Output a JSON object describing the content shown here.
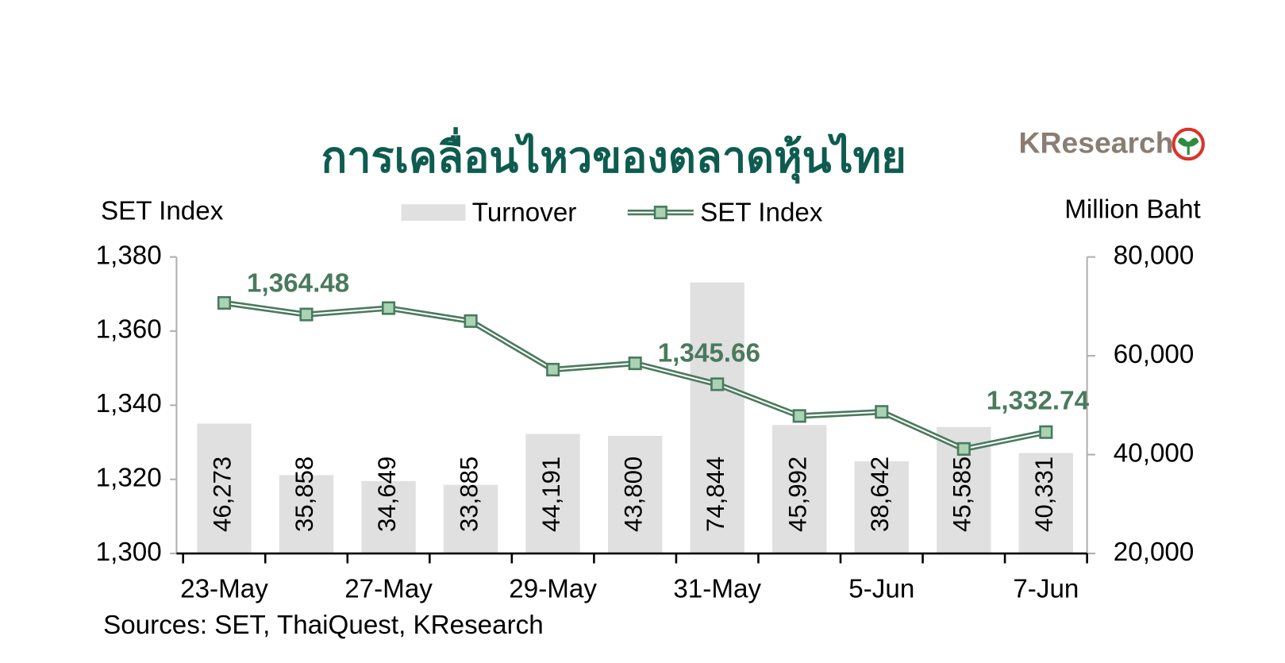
{
  "chart_data": {
    "type": "combo",
    "title": "การเคลื่อนไหวของตลาดหุ้นไทย",
    "logo": "KResearch",
    "y_label": "SET Index",
    "y2_label": "Million Baht",
    "source": "Sources: SET, ThaiQuest, KResearch",
    "categories": [
      "23-May",
      null,
      "27-May",
      null,
      "29-May",
      null,
      "31-May",
      null,
      "5-Jun",
      null,
      "7-Jun"
    ],
    "series": [
      {
        "name": "Turnover",
        "type": "bar",
        "axis": "y2",
        "color": "#e0e0e0",
        "values": [
          46273,
          35858,
          34649,
          33885,
          44191,
          43800,
          74844,
          45992,
          38642,
          45585,
          40331
        ],
        "value_labels": [
          "46,273",
          "35,858",
          "34,649",
          "33,885",
          "44,191",
          "43,800",
          "74,844",
          "45,992",
          "38,642",
          "45,585",
          "40,331"
        ]
      },
      {
        "name": "SET Index",
        "type": "line",
        "color": "#4a7a5e",
        "marker_color": "#a9d3b3",
        "values": [
          1367.6,
          1364.48,
          1366.2,
          1362.7,
          1349.6,
          1351.3,
          1345.66,
          1337.1,
          1338.2,
          1328.2,
          1332.74
        ],
        "value_labels": [
          null,
          "1,364.48",
          null,
          null,
          null,
          null,
          "1,345.66",
          null,
          null,
          null,
          "1,332.74"
        ]
      }
    ],
    "ylim": [
      1300,
      1380
    ],
    "yticks": [
      {
        "value": 1300,
        "label": "1,300"
      },
      {
        "value": 1320,
        "label": "1,320"
      },
      {
        "value": 1340,
        "label": "1,340"
      },
      {
        "value": 1360,
        "label": "1,360"
      },
      {
        "value": 1380,
        "label": "1,380"
      }
    ],
    "y2lim": [
      20000,
      80000
    ],
    "y2ticks": [
      {
        "value": 20000,
        "label": "20,000"
      },
      {
        "value": 40000,
        "label": "40,000"
      },
      {
        "value": 60000,
        "label": "60,000"
      },
      {
        "value": 80000,
        "label": "80,000"
      }
    ]
  }
}
